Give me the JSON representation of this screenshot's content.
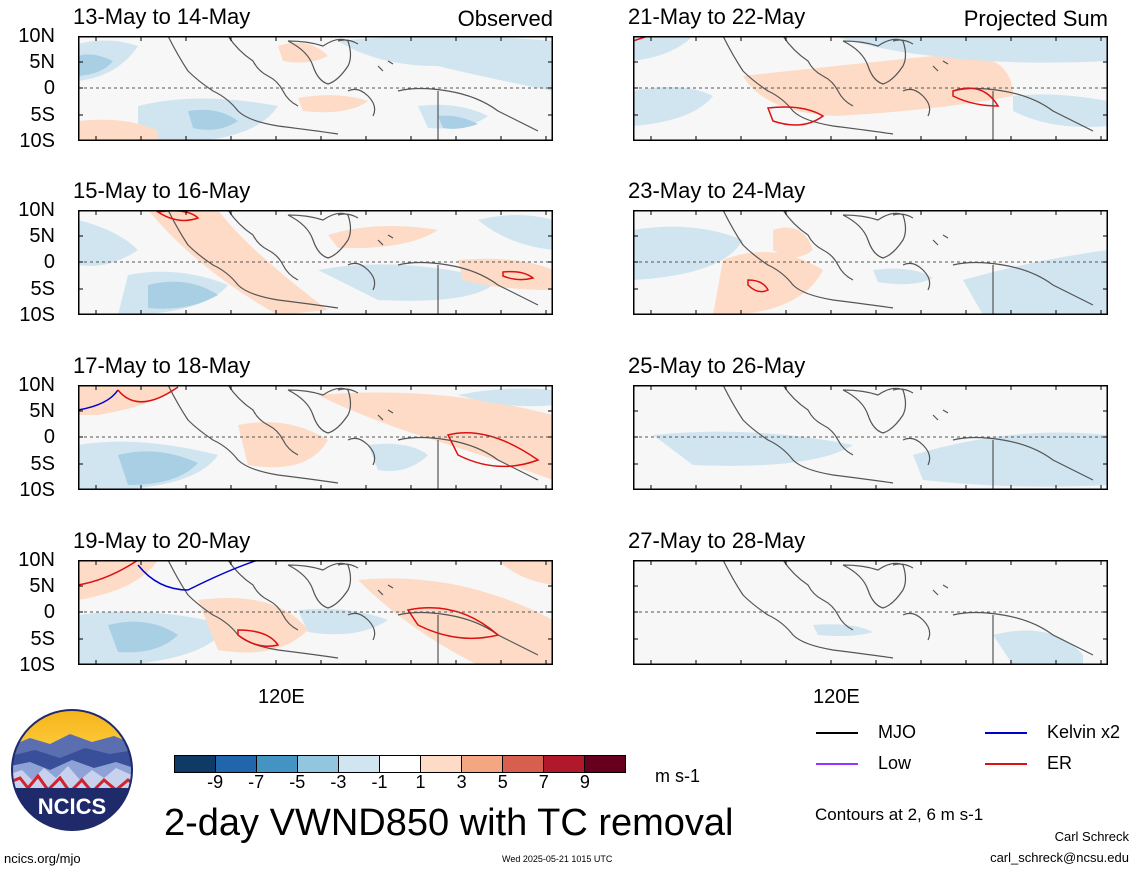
{
  "panels": [
    {
      "title": "13-May to 14-May",
      "corner": "Observed"
    },
    {
      "title": "15-May to 16-May",
      "corner": ""
    },
    {
      "title": "17-May to 18-May",
      "corner": ""
    },
    {
      "title": "19-May to 20-May",
      "corner": ""
    },
    {
      "title": "21-May to 22-May",
      "corner": "Projected Sum"
    },
    {
      "title": "23-May to 24-May",
      "corner": ""
    },
    {
      "title": "25-May to 26-May",
      "corner": ""
    },
    {
      "title": "27-May to 28-May",
      "corner": ""
    }
  ],
  "lat_labels": [
    "10N",
    "5N",
    "0",
    "5S",
    "10S"
  ],
  "lon_label": "120E",
  "colorbar": {
    "colors": [
      "#0d3b66",
      "#2166ac",
      "#4393c3",
      "#92c5de",
      "#d1e5f0",
      "#ffffff",
      "#fddbc7",
      "#f4a582",
      "#d6604d",
      "#b2182b",
      "#67001f"
    ],
    "ticks": [
      "-9",
      "-7",
      "-5",
      "-3",
      "-1",
      "1",
      "3",
      "5",
      "7",
      "9"
    ],
    "units": "m s-1"
  },
  "title": "2-day VWND850 with TC removal",
  "legend": [
    {
      "label": "MJO",
      "color": "#000000"
    },
    {
      "label": "Kelvin x2",
      "color": "#0000cc"
    },
    {
      "label": "Low",
      "color": "#9933ff"
    },
    {
      "label": "ER",
      "color": "#dd1111"
    }
  ],
  "contour_note": "Contours at 2, 6 m s-1",
  "logo_text": "NCICS",
  "footer": {
    "left": "ncics.org/mjo",
    "center": "Wed 2025-05-21 1015 UTC",
    "author": "Carl Schreck",
    "email": "carl_schreck@ncsu.edu"
  }
}
